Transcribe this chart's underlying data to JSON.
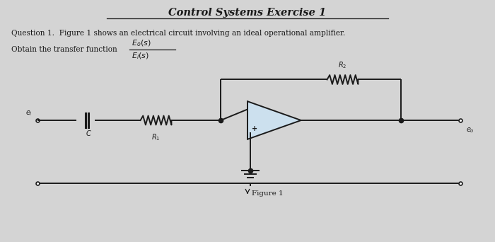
{
  "title": "Control Systems Exercise 1",
  "bg_color": "#d4d4d4",
  "text_color": "#1a1a1a",
  "line_color": "#1a1a1a",
  "question_line1": "Question 1.  Figure 1 shows an electrical circuit involving an ideal operational amplifier.",
  "question_line2": "Obtain the transfer function",
  "figure_label": "Figure 1",
  "opamp_face": "#cce0ee"
}
